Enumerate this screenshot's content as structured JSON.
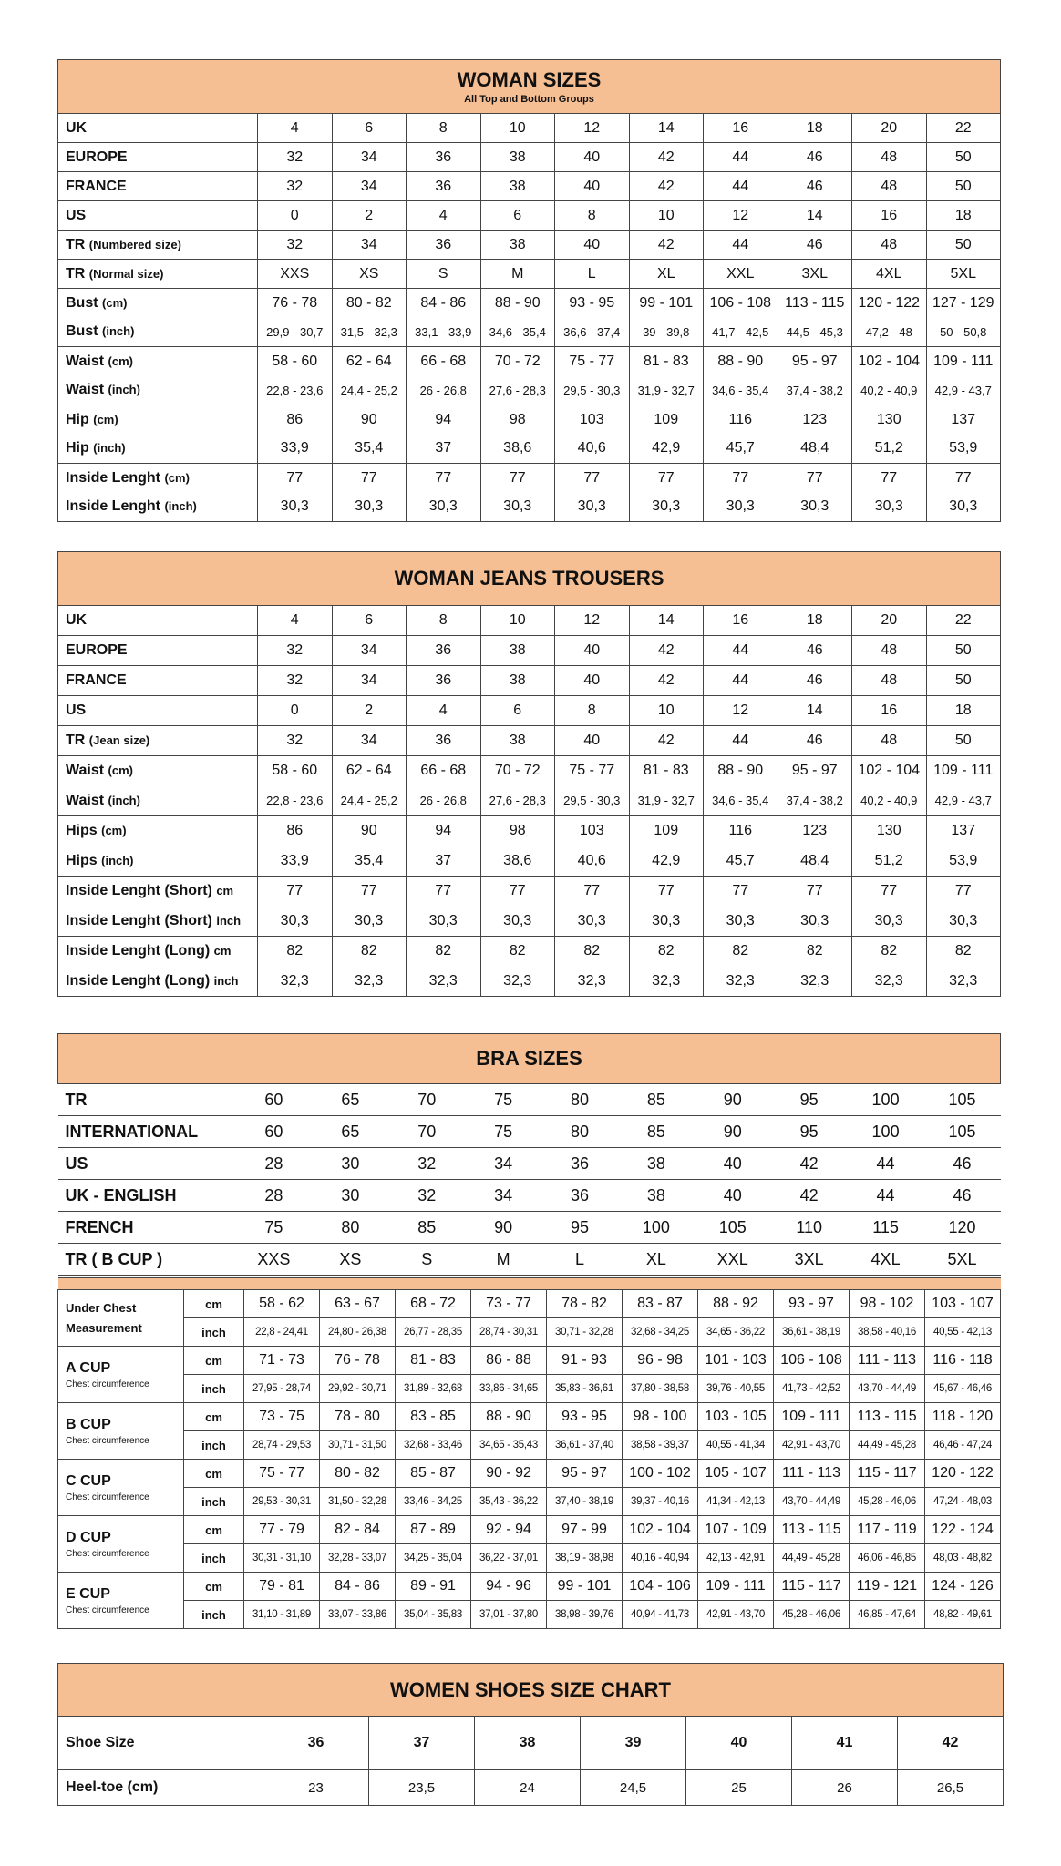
{
  "colors": {
    "header_bg": "#f6bf93",
    "border": "#444444"
  },
  "woman_sizes": {
    "title": "WOMAN SIZES",
    "subtitle": "All Top and Bottom Groups",
    "rows": [
      {
        "label": "UK",
        "unit": "",
        "values": [
          "4",
          "6",
          "8",
          "10",
          "12",
          "14",
          "16",
          "18",
          "20",
          "22"
        ]
      },
      {
        "label": "EUROPE",
        "unit": "",
        "values": [
          "32",
          "34",
          "36",
          "38",
          "40",
          "42",
          "44",
          "46",
          "48",
          "50"
        ]
      },
      {
        "label": "FRANCE",
        "unit": "",
        "values": [
          "32",
          "34",
          "36",
          "38",
          "40",
          "42",
          "44",
          "46",
          "48",
          "50"
        ]
      },
      {
        "label": "US",
        "unit": "",
        "values": [
          "0",
          "2",
          "4",
          "6",
          "8",
          "10",
          "12",
          "14",
          "16",
          "18"
        ]
      },
      {
        "label": "TR",
        "unit": "(Numbered size)",
        "values": [
          "32",
          "34",
          "36",
          "38",
          "40",
          "42",
          "44",
          "46",
          "48",
          "50"
        ]
      },
      {
        "label": "TR",
        "unit": "(Normal size)",
        "values": [
          "XXS",
          "XS",
          "S",
          "M",
          "L",
          "XL",
          "XXL",
          "3XL",
          "4XL",
          "5XL"
        ]
      },
      {
        "label": "Bust",
        "unit": "(cm)",
        "group": "top",
        "values": [
          "76 - 78",
          "80 - 82",
          "84 - 86",
          "88 - 90",
          "93 - 95",
          "99 - 101",
          "106 - 108",
          "113 - 115",
          "120 - 122",
          "127 - 129"
        ]
      },
      {
        "label": "Bust",
        "unit": "(inch)",
        "group": "bot",
        "small": true,
        "values": [
          "29,9 - 30,7",
          "31,5 - 32,3",
          "33,1 - 33,9",
          "34,6 - 35,4",
          "36,6 - 37,4",
          "39 - 39,8",
          "41,7 - 42,5",
          "44,5 - 45,3",
          "47,2 - 48",
          "50 - 50,8"
        ]
      },
      {
        "label": "Waist",
        "unit": "(cm)",
        "group": "top",
        "values": [
          "58 - 60",
          "62 - 64",
          "66 - 68",
          "70 - 72",
          "75 - 77",
          "81 - 83",
          "88 - 90",
          "95 - 97",
          "102 - 104",
          "109 - 111"
        ]
      },
      {
        "label": "Waist",
        "unit": "(inch)",
        "group": "bot",
        "small": true,
        "values": [
          "22,8 - 23,6",
          "24,4 - 25,2",
          "26 - 26,8",
          "27,6 - 28,3",
          "29,5 - 30,3",
          "31,9 - 32,7",
          "34,6 - 35,4",
          "37,4 - 38,2",
          "40,2 - 40,9",
          "42,9 - 43,7"
        ]
      },
      {
        "label": "Hip",
        "unit": "(cm)",
        "group": "top",
        "values": [
          "86",
          "90",
          "94",
          "98",
          "103",
          "109",
          "116",
          "123",
          "130",
          "137"
        ]
      },
      {
        "label": "Hip",
        "unit": "(inch)",
        "group": "bot",
        "values": [
          "33,9",
          "35,4",
          "37",
          "38,6",
          "40,6",
          "42,9",
          "45,7",
          "48,4",
          "51,2",
          "53,9"
        ]
      },
      {
        "label": "Inside Lenght",
        "unit": "(cm)",
        "group": "top",
        "values": [
          "77",
          "77",
          "77",
          "77",
          "77",
          "77",
          "77",
          "77",
          "77",
          "77"
        ]
      },
      {
        "label": "Inside Lenght",
        "unit": "(inch)",
        "group": "bot",
        "values": [
          "30,3",
          "30,3",
          "30,3",
          "30,3",
          "30,3",
          "30,3",
          "30,3",
          "30,3",
          "30,3",
          "30,3"
        ]
      }
    ]
  },
  "jeans": {
    "title": "WOMAN JEANS TROUSERS",
    "rows": [
      {
        "label": "UK",
        "unit": "",
        "values": [
          "4",
          "6",
          "8",
          "10",
          "12",
          "14",
          "16",
          "18",
          "20",
          "22"
        ]
      },
      {
        "label": "EUROPE",
        "unit": "",
        "values": [
          "32",
          "34",
          "36",
          "38",
          "40",
          "42",
          "44",
          "46",
          "48",
          "50"
        ]
      },
      {
        "label": "FRANCE",
        "unit": "",
        "values": [
          "32",
          "34",
          "36",
          "38",
          "40",
          "42",
          "44",
          "46",
          "48",
          "50"
        ]
      },
      {
        "label": "US",
        "unit": "",
        "values": [
          "0",
          "2",
          "4",
          "6",
          "8",
          "10",
          "12",
          "14",
          "16",
          "18"
        ]
      },
      {
        "label": "TR",
        "unit": "(Jean size)",
        "values": [
          "32",
          "34",
          "36",
          "38",
          "40",
          "42",
          "44",
          "46",
          "48",
          "50"
        ]
      },
      {
        "label": "Waist",
        "unit": "(cm)",
        "group": "top",
        "values": [
          "58 - 60",
          "62 - 64",
          "66 - 68",
          "70 - 72",
          "75 - 77",
          "81 - 83",
          "88 - 90",
          "95 - 97",
          "102 - 104",
          "109 - 111"
        ]
      },
      {
        "label": "Waist",
        "unit": "(inch)",
        "group": "bot",
        "small": true,
        "values": [
          "22,8 - 23,6",
          "24,4 - 25,2",
          "26 - 26,8",
          "27,6 - 28,3",
          "29,5 - 30,3",
          "31,9 - 32,7",
          "34,6 - 35,4",
          "37,4 - 38,2",
          "40,2 - 40,9",
          "42,9 - 43,7"
        ]
      },
      {
        "label": "Hips",
        "unit": "(cm)",
        "group": "top",
        "values": [
          "86",
          "90",
          "94",
          "98",
          "103",
          "109",
          "116",
          "123",
          "130",
          "137"
        ]
      },
      {
        "label": "Hips",
        "unit": "(inch)",
        "group": "bot",
        "values": [
          "33,9",
          "35,4",
          "37",
          "38,6",
          "40,6",
          "42,9",
          "45,7",
          "48,4",
          "51,2",
          "53,9"
        ]
      },
      {
        "label": "Inside Lenght (Short)",
        "unit": "cm",
        "group": "top",
        "values": [
          "77",
          "77",
          "77",
          "77",
          "77",
          "77",
          "77",
          "77",
          "77",
          "77"
        ]
      },
      {
        "label": "Inside Lenght (Short)",
        "unit": "inch",
        "group": "bot",
        "values": [
          "30,3",
          "30,3",
          "30,3",
          "30,3",
          "30,3",
          "30,3",
          "30,3",
          "30,3",
          "30,3",
          "30,3"
        ]
      },
      {
        "label": "Inside Lenght (Long)",
        "unit": "cm",
        "group": "top",
        "values": [
          "82",
          "82",
          "82",
          "82",
          "82",
          "82",
          "82",
          "82",
          "82",
          "82"
        ]
      },
      {
        "label": "Inside Lenght (Long)",
        "unit": "inch",
        "group": "bot",
        "values": [
          "32,3",
          "32,3",
          "32,3",
          "32,3",
          "32,3",
          "32,3",
          "32,3",
          "32,3",
          "32,3",
          "32,3"
        ]
      }
    ]
  },
  "bra": {
    "title": "BRA SIZES",
    "size_rows": [
      {
        "label": "TR",
        "values": [
          "60",
          "65",
          "70",
          "75",
          "80",
          "85",
          "90",
          "95",
          "100",
          "105"
        ]
      },
      {
        "label": "INTERNATIONAL",
        "values": [
          "60",
          "65",
          "70",
          "75",
          "80",
          "85",
          "90",
          "95",
          "100",
          "105"
        ]
      },
      {
        "label": "US",
        "values": [
          "28",
          "30",
          "32",
          "34",
          "36",
          "38",
          "40",
          "42",
          "44",
          "46"
        ]
      },
      {
        "label": "UK - ENGLISH",
        "values": [
          "28",
          "30",
          "32",
          "34",
          "36",
          "38",
          "40",
          "42",
          "44",
          "46"
        ]
      },
      {
        "label": "FRENCH",
        "values": [
          "75",
          "80",
          "85",
          "90",
          "95",
          "100",
          "105",
          "110",
          "115",
          "120"
        ]
      },
      {
        "label": "TR ( B CUP )",
        "values": [
          "XXS",
          "XS",
          "S",
          "M",
          "L",
          "XL",
          "XXL",
          "3XL",
          "4XL",
          "5XL"
        ]
      }
    ],
    "cup_rows": [
      {
        "label": "Under Chest Measurement",
        "sub": "",
        "cm": [
          "58 - 62",
          "63 - 67",
          "68 - 72",
          "73 - 77",
          "78 - 82",
          "83 - 87",
          "88 - 92",
          "93 - 97",
          "98 - 102",
          "103 - 107"
        ],
        "inch": [
          "22,8 - 24,41",
          "24,80 - 26,38",
          "26,77 - 28,35",
          "28,74 - 30,31",
          "30,71 - 32,28",
          "32,68 - 34,25",
          "34,65 - 36,22",
          "36,61 - 38,19",
          "38,58 - 40,16",
          "40,55 - 42,13"
        ]
      },
      {
        "label": "A CUP",
        "sub": "Chest circumference",
        "cm": [
          "71 - 73",
          "76 - 78",
          "81 - 83",
          "86 - 88",
          "91 - 93",
          "96 - 98",
          "101 - 103",
          "106 - 108",
          "111 - 113",
          "116 - 118"
        ],
        "inch": [
          "27,95 - 28,74",
          "29,92 - 30,71",
          "31,89 - 32,68",
          "33,86 - 34,65",
          "35,83 - 36,61",
          "37,80 - 38,58",
          "39,76 - 40,55",
          "41,73 - 42,52",
          "43,70 - 44,49",
          "45,67 - 46,46"
        ]
      },
      {
        "label": "B CUP",
        "sub": "Chest circumference",
        "cm": [
          "73 - 75",
          "78 - 80",
          "83 - 85",
          "88 - 90",
          "93 - 95",
          "98 - 100",
          "103 - 105",
          "109 - 111",
          "113 - 115",
          "118 - 120"
        ],
        "inch": [
          "28,74 - 29,53",
          "30,71 - 31,50",
          "32,68 - 33,46",
          "34,65 - 35,43",
          "36,61 - 37,40",
          "38,58 - 39,37",
          "40,55 - 41,34",
          "42,91 - 43,70",
          "44,49 - 45,28",
          "46,46 - 47,24"
        ]
      },
      {
        "label": "C CUP",
        "sub": "Chest circumference",
        "cm": [
          "75 - 77",
          "80 - 82",
          "85 - 87",
          "90 - 92",
          "95 - 97",
          "100 - 102",
          "105 - 107",
          "111 - 113",
          "115 - 117",
          "120 - 122"
        ],
        "inch": [
          "29,53 - 30,31",
          "31,50 - 32,28",
          "33,46 - 34,25",
          "35,43 - 36,22",
          "37,40 - 38,19",
          "39,37 - 40,16",
          "41,34 - 42,13",
          "43,70 - 44,49",
          "45,28 - 46,06",
          "47,24 - 48,03"
        ]
      },
      {
        "label": "D CUP",
        "sub": "Chest circumference",
        "cm": [
          "77 - 79",
          "82 - 84",
          "87 - 89",
          "92 - 94",
          "97 - 99",
          "102 - 104",
          "107 - 109",
          "113 - 115",
          "117 - 119",
          "122 - 124"
        ],
        "inch": [
          "30,31 - 31,10",
          "32,28 - 33,07",
          "34,25 - 35,04",
          "36,22 - 37,01",
          "38,19 - 38,98",
          "40,16 - 40,94",
          "42,13 - 42,91",
          "44,49 - 45,28",
          "46,06 - 46,85",
          "48,03 - 48,82"
        ]
      },
      {
        "label": "E CUP",
        "sub": "Chest circumference",
        "cm": [
          "79 - 81",
          "84 - 86",
          "89 - 91",
          "94 - 96",
          "99 - 101",
          "104 - 106",
          "109 - 111",
          "115 - 117",
          "119 - 121",
          "124 - 126"
        ],
        "inch": [
          "31,10 - 31,89",
          "33,07 - 33,86",
          "35,04 - 35,83",
          "37,01 - 37,80",
          "38,98 - 39,76",
          "40,94 - 41,73",
          "42,91 - 43,70",
          "45,28 - 46,06",
          "46,85 - 47,64",
          "48,82 - 49,61"
        ]
      }
    ],
    "unit_cm": "cm",
    "unit_inch": "inch"
  },
  "shoes": {
    "title": "WOMEN SHOES SIZE CHART",
    "rows": [
      {
        "label": "Shoe Size",
        "values": [
          "36",
          "37",
          "38",
          "39",
          "40",
          "41",
          "42"
        ]
      },
      {
        "label": "Heel-toe (cm)",
        "values": [
          "23",
          "23,5",
          "24",
          "24,5",
          "25",
          "26",
          "26,5"
        ]
      }
    ]
  }
}
